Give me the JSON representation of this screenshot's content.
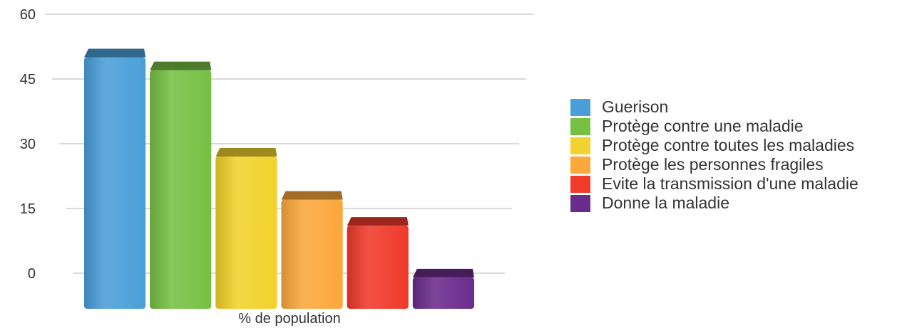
{
  "chart_data": {
    "type": "bar",
    "xlabel": "% de population",
    "ylabel": "",
    "ylim": [
      0,
      60
    ],
    "yticks": [
      0,
      15,
      30,
      45,
      60
    ],
    "grid": true,
    "legend_position": "right",
    "series": [
      {
        "name": "Guerison",
        "value": 53,
        "color": "#4a9fd8"
      },
      {
        "name": "Protège contre une maladie",
        "value": 50,
        "color": "#76c043"
      },
      {
        "name": "Protège contre toutes les maladies",
        "value": 30,
        "color": "#f2d22c"
      },
      {
        "name": "Protège les personnes fragiles",
        "value": 20,
        "color": "#fba83c"
      },
      {
        "name": "Evite la transmission d'une maladie",
        "value": 14,
        "color": "#f03a2a"
      },
      {
        "name": "Donne la maladie",
        "value": 2,
        "color": "#6a2c8c"
      }
    ]
  }
}
